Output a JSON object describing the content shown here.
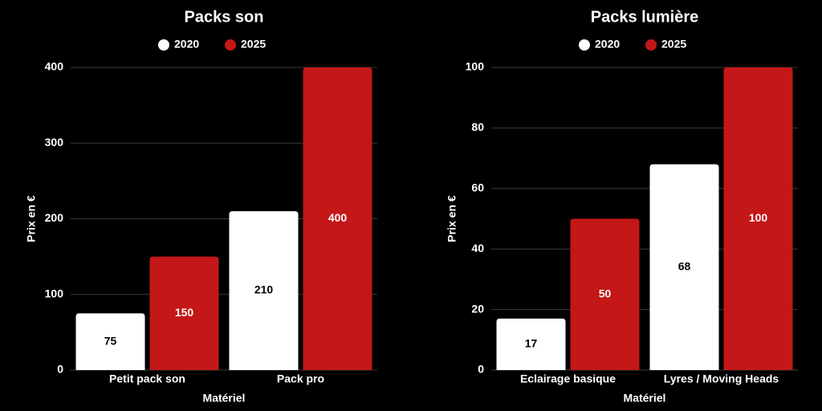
{
  "chart_data": [
    {
      "type": "bar",
      "title": "Packs son",
      "xlabel": "Matériel",
      "ylabel": "Prix en €",
      "categories": [
        "Petit pack son",
        "Pack pro"
      ],
      "series": [
        {
          "name": "2020",
          "values": [
            75,
            210
          ],
          "color": "#ffffff",
          "label_color": "#000000"
        },
        {
          "name": "2025",
          "values": [
            150,
            400
          ],
          "color": "#c41717",
          "label_color": "#ffffff"
        }
      ],
      "ylim": [
        0,
        400
      ],
      "yticks": [
        0,
        100,
        200,
        300,
        400
      ],
      "grid": true,
      "legend": "top"
    },
    {
      "type": "bar",
      "title": "Packs lumière",
      "xlabel": "Matériel",
      "ylabel": "Prix en €",
      "categories": [
        "Eclairage basique",
        "Lyres / Moving Heads"
      ],
      "series": [
        {
          "name": "2020",
          "values": [
            17,
            68
          ],
          "color": "#ffffff",
          "label_color": "#000000"
        },
        {
          "name": "2025",
          "values": [
            50,
            100
          ],
          "color": "#c41717",
          "label_color": "#ffffff"
        }
      ],
      "ylim": [
        0,
        100
      ],
      "yticks": [
        0,
        20,
        40,
        60,
        80,
        100
      ],
      "grid": true,
      "legend": "top"
    }
  ]
}
